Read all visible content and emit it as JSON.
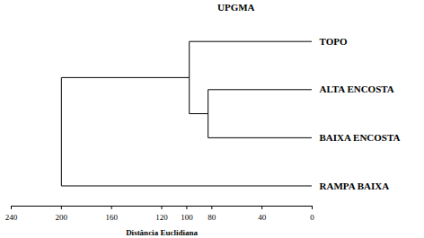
{
  "chart_data": {
    "type": "dendrogram",
    "title": "UPGMA",
    "x_label": "Distância Euclidiana",
    "categories": [
      "TOPO",
      "ALTA ENCOSTA",
      "BAIXA ENCOSTA",
      "RAMPA BAIXA"
    ],
    "merges": [
      {
        "a": 1,
        "b": 2,
        "height": 83
      },
      {
        "a": 0,
        "b": 4,
        "height": 98
      },
      {
        "a": 5,
        "b": 3,
        "height": 200
      }
    ],
    "xlim": [
      240,
      0
    ],
    "xticks": [
      240,
      200,
      160,
      120,
      100,
      80,
      40,
      0
    ]
  }
}
